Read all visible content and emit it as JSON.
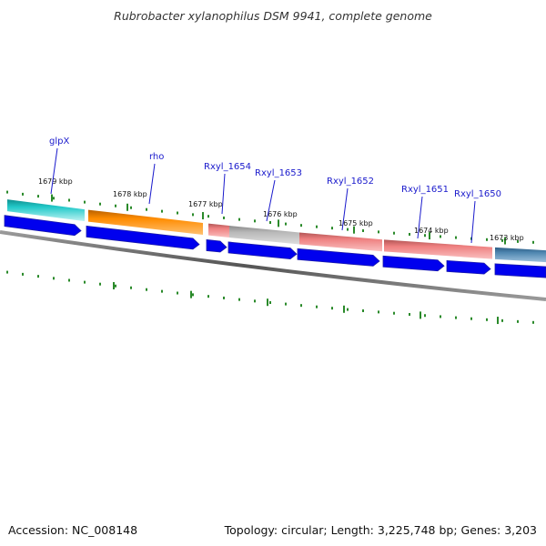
{
  "title": "Rubrobacter xylanophilus DSM 9941, complete genome",
  "footer": {
    "accession": "Accession: NC_008148",
    "topology": "Topology: circular; Length: 3,225,748 bp; Genes: 3,203"
  },
  "colors": {
    "backbone": "#7a7a7a",
    "cds_arrow": "#0000ee",
    "tick": "#2a8a2a",
    "label": "#1a1acc",
    "teal": "#22c9c9",
    "orange": "#ff8c00",
    "pink": "#ee8080",
    "gray": "#b8b8b8",
    "steelblue": "#4f86b0"
  },
  "kbp_labels": [
    "1679 kbp",
    "1678 kbp",
    "1677 kbp",
    "1676 kbp",
    "1675 kbp",
    "1674 kbp",
    "1673 kbp"
  ],
  "gene_labels": [
    "glpX",
    "rho",
    "Rxyl_1654",
    "Rxyl_1653",
    "Rxyl_1652",
    "Rxyl_1651",
    "Rxyl_1650"
  ],
  "feature_colors": [
    "teal",
    "orange",
    "pink",
    "gray",
    "pink",
    "pink",
    "steelblue"
  ]
}
